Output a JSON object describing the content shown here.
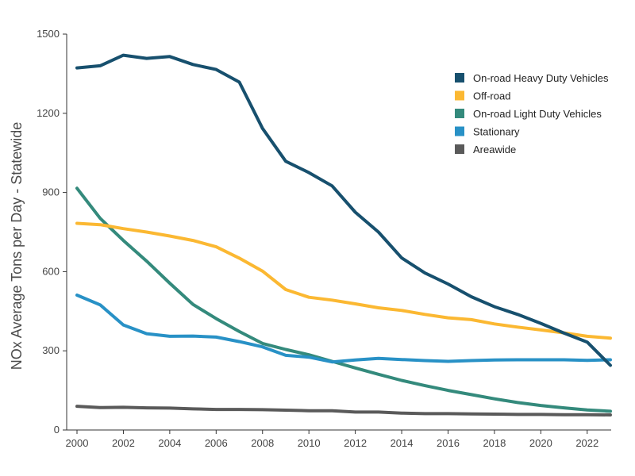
{
  "chart_data": {
    "type": "line",
    "title": "",
    "xlabel": "",
    "ylabel": "NOx Average Tons per Day - Statewide",
    "xlim": [
      2000,
      2023
    ],
    "ylim": [
      0,
      1500
    ],
    "x_ticks": [
      2000,
      2002,
      2004,
      2006,
      2008,
      2010,
      2012,
      2014,
      2016,
      2018,
      2020,
      2022
    ],
    "y_ticks": [
      0,
      300,
      600,
      900,
      1200,
      1500
    ],
    "grid": false,
    "legend_position": "top-right",
    "x": [
      2000,
      2001,
      2002,
      2003,
      2004,
      2005,
      2006,
      2007,
      2008,
      2009,
      2010,
      2011,
      2012,
      2013,
      2014,
      2015,
      2016,
      2017,
      2018,
      2019,
      2020,
      2021,
      2022,
      2023
    ],
    "series": [
      {
        "name": "On-road Heavy Duty Vehicles",
        "color": "#17506e",
        "values": [
          1372,
          1380,
          1420,
          1408,
          1415,
          1385,
          1366,
          1318,
          1143,
          1018,
          975,
          925,
          825,
          750,
          652,
          595,
          553,
          505,
          467,
          438,
          404,
          367,
          333,
          245
        ]
      },
      {
        "name": "Off-road",
        "color": "#fbb832",
        "values": [
          783,
          778,
          763,
          750,
          735,
          718,
          694,
          651,
          602,
          532,
          503,
          492,
          478,
          463,
          453,
          438,
          425,
          418,
          402,
          390,
          379,
          368,
          355,
          348
        ]
      },
      {
        "name": "On-road Light Duty Vehicles",
        "color": "#348a7c",
        "values": [
          916,
          802,
          718,
          640,
          556,
          476,
          422,
          373,
          328,
          305,
          285,
          260,
          235,
          211,
          188,
          168,
          150,
          134,
          118,
          104,
          93,
          84,
          76,
          71
        ]
      },
      {
        "name": "Stationary",
        "color": "#2891c6",
        "values": [
          511,
          474,
          398,
          365,
          355,
          356,
          352,
          335,
          315,
          283,
          276,
          258,
          265,
          271,
          267,
          263,
          260,
          263,
          265,
          266,
          266,
          266,
          264,
          266
        ]
      },
      {
        "name": "Areawide",
        "color": "#5a5a5a",
        "values": [
          90,
          85,
          86,
          84,
          83,
          80,
          78,
          78,
          77,
          75,
          73,
          73,
          68,
          68,
          64,
          62,
          62,
          61,
          60,
          59,
          59,
          58,
          58,
          57
        ]
      }
    ]
  }
}
